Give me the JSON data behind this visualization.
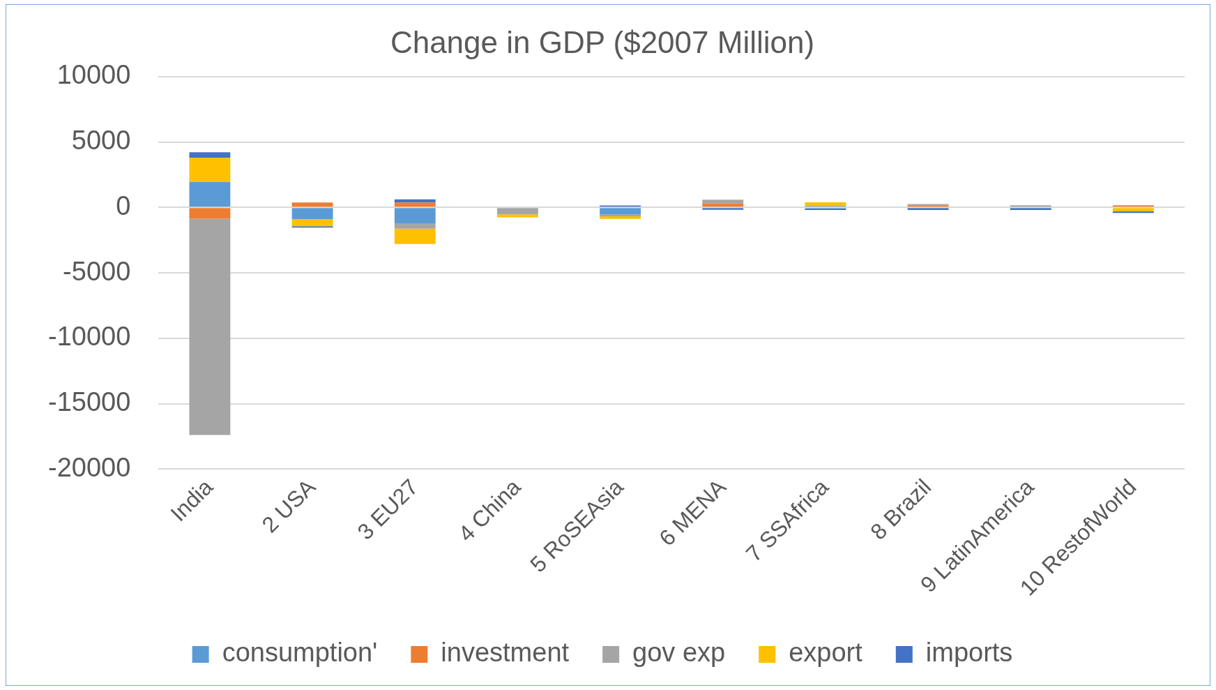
{
  "chart_data": {
    "type": "bar",
    "title": "Change in GDP ($2007 Million)",
    "stacked": true,
    "categories": [
      "India",
      "2 USA",
      "3 EU27",
      "4 China",
      "5 RoSEAsia",
      "6 MENA",
      "7 SSAfrica",
      "8 Brazil",
      "9 LatinAmerica",
      "10 RestofWorld"
    ],
    "series": [
      {
        "name": "consumption'",
        "color": "#5b9bd5",
        "values": [
          1950,
          -910,
          -1210,
          0,
          -530,
          60,
          -80,
          0,
          0,
          0
        ]
      },
      {
        "name": "investment",
        "color": "#ed7d31",
        "values": [
          -870,
          380,
          380,
          0,
          0,
          230,
          0,
          160,
          0,
          160
        ]
      },
      {
        "name": "gov exp",
        "color": "#a5a5a5",
        "values": [
          -16530,
          0,
          -420,
          -530,
          -150,
          300,
          150,
          100,
          160,
          0
        ]
      },
      {
        "name": "export",
        "color": "#ffc000",
        "values": [
          1850,
          -530,
          -1170,
          -230,
          -200,
          0,
          240,
          0,
          0,
          -290
        ]
      },
      {
        "name": "imports",
        "color": "#4472c4",
        "values": [
          420,
          -100,
          230,
          0,
          150,
          -180,
          -120,
          -200,
          -200,
          -130
        ]
      }
    ],
    "ylim": [
      -20000,
      10000
    ],
    "yticks": [
      -20000,
      -15000,
      -10000,
      -5000,
      0,
      5000,
      10000
    ],
    "grid": "y",
    "legend": "bottom"
  }
}
